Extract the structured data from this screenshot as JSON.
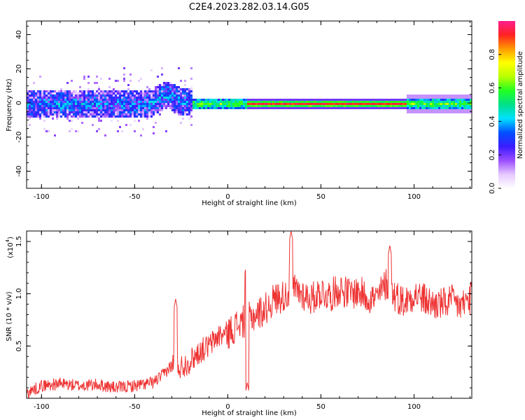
{
  "title": "C2E4.2023.282.03.14.G05",
  "chart_data": [
    {
      "type": "heatmap",
      "xlabel": "Height of straight line (km)",
      "ylabel": "Frequency (Hz)",
      "xlim": [
        -108,
        131
      ],
      "ylim": [
        -50,
        48
      ],
      "xticks": [
        -100,
        -50,
        0,
        50,
        100
      ],
      "yticks": [
        -40,
        -20,
        0,
        20,
        40
      ],
      "xtick_labels": [
        "-100",
        "-50",
        "0",
        "50",
        "100"
      ],
      "ytick_labels": [
        "-40",
        "-20",
        "0",
        "20",
        "40"
      ],
      "colorbar": {
        "label": "Normalized spectral amplitude",
        "range": [
          0,
          1
        ],
        "ticks": [
          0.0,
          0.2,
          0.4,
          0.6,
          0.8
        ],
        "tick_labels": [
          "0.0",
          "0.2",
          "0.4",
          "0.6",
          "0.8"
        ],
        "colormap": [
          "#ffffff",
          "#e6c8ff",
          "#9a4dff",
          "#3a1cff",
          "#0050ff",
          "#00e0ff",
          "#00e08a",
          "#22ff22",
          "#b8ff00",
          "#ffff00",
          "#ff9a00",
          "#ff2222",
          "#ff1f8f"
        ]
      },
      "description_regions": [
        {
          "x_range": [
            -108,
            -20
          ],
          "freq_halfwidth": 8,
          "amplitude": "noisy 0.2-0.5"
        },
        {
          "x_range": [
            -20,
            10
          ],
          "freq_halfwidth": 3,
          "amplitude": "transition 0.4-0.8"
        },
        {
          "x_range": [
            10,
            95
          ],
          "freq_halfwidth": 1.5,
          "amplitude": "strong ~0.9-1.0"
        },
        {
          "x_range": [
            95,
            131
          ],
          "freq_halfwidth": 4,
          "amplitude": "moderate 0.5-0.8"
        }
      ]
    },
    {
      "type": "line",
      "xlabel": "Height of straight line (km)",
      "ylabel": "SNR (10 * v/v)",
      "multiplier_label": "(x10",
      "multiplier_exp": "4",
      "xlim": [
        -108,
        131
      ],
      "ylim": [
        0,
        1.6
      ],
      "xticks": [
        -100,
        -50,
        0,
        50,
        100
      ],
      "yticks": [
        0.5,
        1.0,
        1.5
      ],
      "xtick_labels": [
        "-100",
        "-50",
        "0",
        "50",
        "100"
      ],
      "ytick_labels": [
        "0.5",
        "1.0",
        "1.5"
      ],
      "series": [
        {
          "color": "#ee3333",
          "x": [
            -108,
            -100,
            -90,
            -80,
            -70,
            -60,
            -50,
            -40,
            -35,
            -30,
            -25,
            -20,
            -15,
            -10,
            -5,
            0,
            5,
            10,
            15,
            20,
            25,
            30,
            35,
            40,
            45,
            50,
            55,
            60,
            65,
            70,
            75,
            80,
            85,
            90,
            95,
            100,
            105,
            110,
            115,
            120,
            125,
            131
          ],
          "y": [
            0.05,
            0.12,
            0.14,
            0.12,
            0.13,
            0.1,
            0.12,
            0.15,
            0.22,
            0.32,
            0.3,
            0.36,
            0.45,
            0.5,
            0.6,
            0.62,
            0.7,
            0.75,
            0.8,
            0.85,
            0.95,
            0.98,
            1.05,
            1.0,
            0.95,
            1.02,
            0.98,
            1.05,
            1.0,
            1.02,
            0.97,
            0.95,
            1.1,
            0.98,
            0.92,
            1.0,
            0.95,
            0.9,
            0.9,
            0.93,
            0.88,
            0.97
          ],
          "peaks": [
            {
              "x": -28,
              "y": 0.95
            },
            {
              "x": 10,
              "y": 1.28
            },
            {
              "x": 34,
              "y": 1.6
            },
            {
              "x": 87,
              "y": 1.46
            },
            {
              "x": 10.5,
              "y": 0.15
            }
          ]
        }
      ]
    }
  ]
}
